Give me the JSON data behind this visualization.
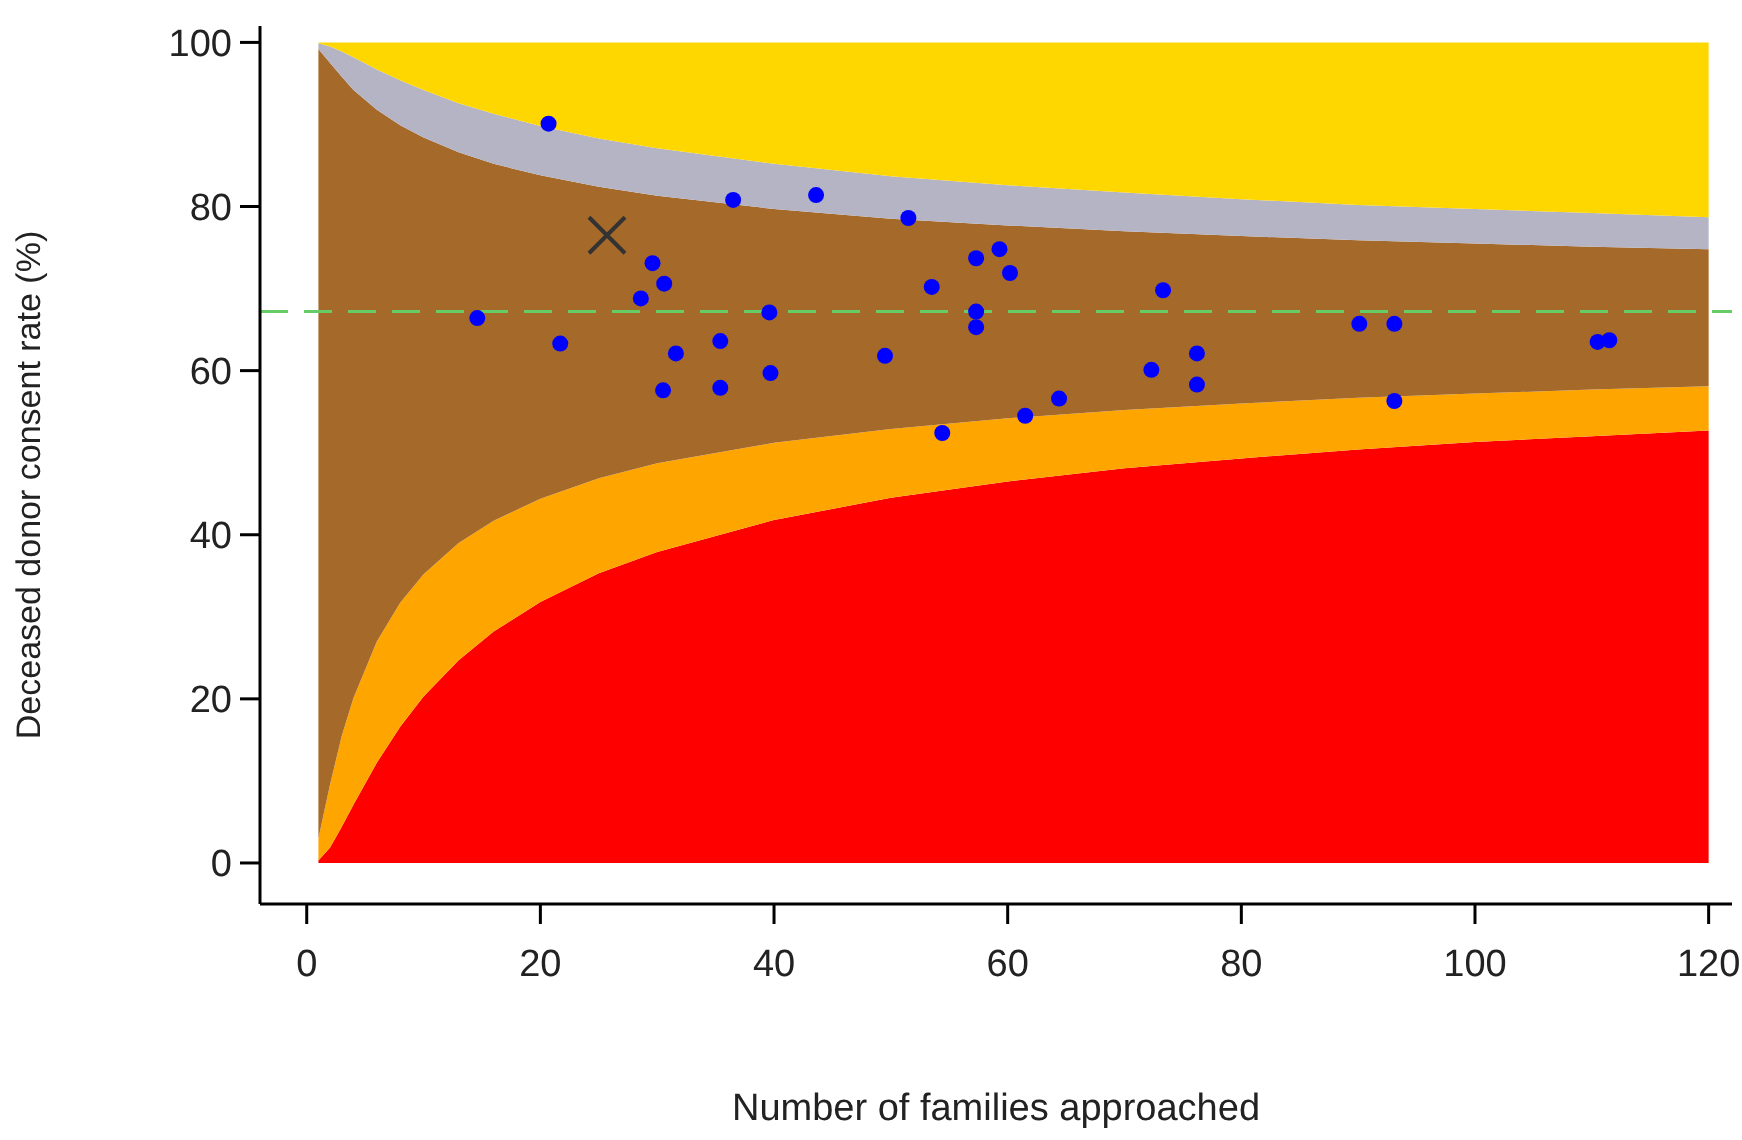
{
  "chart_data": {
    "type": "area",
    "stacked": true,
    "xlabel": "Number of families approached",
    "ylabel": "Deceased donor consent rate (%)",
    "xlim": [
      -4,
      122
    ],
    "ylim": [
      -5,
      102
    ],
    "xticks": [
      0,
      20,
      40,
      60,
      80,
      100,
      120
    ],
    "yticks": [
      0,
      20,
      40,
      60,
      80,
      100
    ],
    "x": [
      1,
      2,
      3,
      4,
      6,
      8,
      10,
      13,
      16,
      20,
      25,
      30,
      40,
      50,
      60,
      70,
      80,
      90,
      100,
      110,
      120
    ],
    "series": [
      {
        "color": "#ff0000",
        "values": [
          0.3,
          1.9,
          4.4,
          7.1,
          12.2,
          16.6,
          20.3,
          24.7,
          28.2,
          31.8,
          35.3,
          37.9,
          41.8,
          44.5,
          46.5,
          48.1,
          49.3,
          50.4,
          51.3,
          52.0,
          52.7
        ]
      },
      {
        "color": "#ffa500",
        "values": [
          2.7,
          7.7,
          11.1,
          13.0,
          14.8,
          15.1,
          14.9,
          14.3,
          13.5,
          12.6,
          11.6,
          10.8,
          9.4,
          8.4,
          7.7,
          7.1,
          6.7,
          6.3,
          5.9,
          5.7,
          5.4
        ]
      },
      {
        "color": "#a5692a",
        "values": [
          96.2,
          87.9,
          80.3,
          74.1,
          64.8,
          58.2,
          53.2,
          47.6,
          43.5,
          39.4,
          35.5,
          32.6,
          28.5,
          25.6,
          23.5,
          21.8,
          20.4,
          19.2,
          18.3,
          17.4,
          16.7
        ]
      },
      {
        "color": "#b4b4c4",
        "values": [
          0.7,
          2.0,
          3.1,
          4.0,
          4.9,
          5.5,
          5.8,
          6.0,
          6.1,
          6.0,
          5.9,
          5.8,
          5.5,
          5.2,
          4.9,
          4.7,
          4.5,
          4.3,
          4.2,
          4.1,
          3.9
        ]
      },
      {
        "color": "#ffd700",
        "values": [
          0.1,
          0.5,
          1.1,
          1.8,
          3.3,
          4.6,
          5.8,
          7.4,
          8.7,
          10.2,
          11.7,
          12.9,
          14.8,
          16.3,
          17.4,
          18.3,
          19.1,
          19.8,
          20.3,
          20.8,
          21.3
        ]
      },
      {
        "type": "scatter",
        "marker": "circle",
        "color": "#0000ff",
        "x": [
          20.7,
          36.5,
          29.6,
          30.6,
          28.6,
          14.6,
          39.6,
          21.7,
          35.4,
          31.6,
          39.7,
          30.5,
          35.4,
          43.6,
          51.5,
          57.3,
          59.3,
          60.2,
          53.5,
          73.3,
          57.3,
          57.3,
          49.5,
          72.3,
          76.2,
          76.2,
          64.4,
          61.5,
          54.4,
          90.1,
          93.1,
          93.1,
          110.5,
          111.5
        ],
        "values": [
          90.1,
          80.8,
          73.1,
          70.6,
          68.8,
          66.4,
          67.1,
          63.3,
          63.6,
          62.1,
          59.7,
          57.6,
          57.9,
          81.4,
          78.6,
          73.7,
          74.8,
          71.9,
          70.2,
          69.8,
          67.2,
          65.3,
          61.8,
          60.1,
          62.1,
          58.3,
          56.6,
          54.5,
          52.4,
          65.7,
          65.7,
          56.3,
          63.5,
          63.7
        ]
      },
      {
        "type": "scatter",
        "marker": "cross",
        "color": "#333333",
        "x": [
          25.7
        ],
        "values": [
          76.5
        ]
      }
    ],
    "ref_lines": [
      {
        "axis": "y",
        "value": 67.2,
        "color": "#66cc66",
        "line_style": "dashed"
      }
    ]
  }
}
